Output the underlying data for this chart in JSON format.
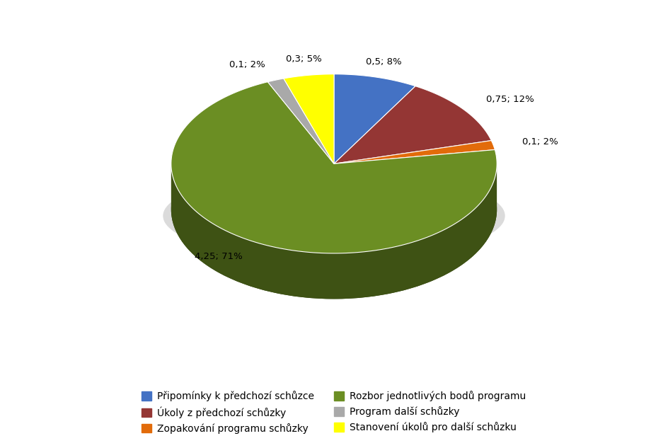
{
  "slices": [
    {
      "label": "Připomínky k předchozí schůzce",
      "value": 0.5,
      "pct": 8,
      "color": "#4472C4",
      "annotation": "0,5; 8%"
    },
    {
      "label": "Úkoly z předchozí schůzky",
      "value": 0.75,
      "pct": 12,
      "color": "#943634",
      "annotation": "0,75; 12%"
    },
    {
      "label": "Zopakování programu schůzky",
      "value": 0.1,
      "pct": 2,
      "color": "#E26B0A",
      "annotation": "0,1; 2%"
    },
    {
      "label": "Rozbor jednotlivých bodů programu",
      "value": 4.25,
      "pct": 71,
      "color": "#6B8E23",
      "annotation": "4,25; 71%"
    },
    {
      "label": "Program další schůzky",
      "value": 0.1,
      "pct": 2,
      "color": "#A9A9A9",
      "annotation": "0,1; 2%"
    },
    {
      "label": "Stanovení úkolů pro další schůzku",
      "value": 0.3,
      "pct": 5,
      "color": "#FFFF00",
      "annotation": "0,3; 5%"
    }
  ],
  "background_color": "#FFFFFF",
  "figsize": [
    9.44,
    6.33
  ],
  "dpi": 100
}
